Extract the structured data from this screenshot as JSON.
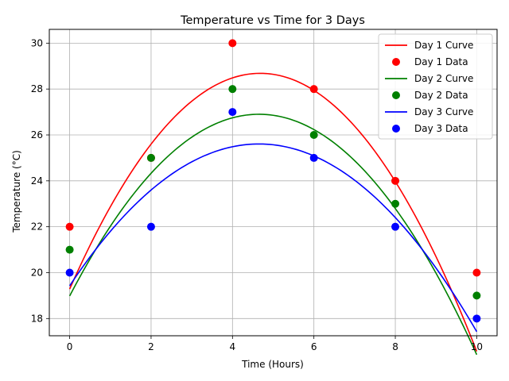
{
  "chart_data": {
    "type": "scatter",
    "title": "Temperature vs Time for 3 Days",
    "xlabel": "Time (Hours)",
    "ylabel": "Temperature (°C)",
    "xlim": [
      -0.5,
      10.5
    ],
    "ylim": [
      17.25,
      30.6
    ],
    "xticks": [
      0,
      2,
      4,
      6,
      8,
      10
    ],
    "yticks": [
      18,
      20,
      22,
      24,
      26,
      28,
      30
    ],
    "grid": true,
    "legend_position": "top-right",
    "series": [
      {
        "day": "Day 1",
        "color": "#ff0000",
        "curve_name": "Day 1 Curve",
        "data_name": "Day 1 Data",
        "x": [
          0,
          2,
          4,
          6,
          8,
          10
        ],
        "y": [
          22,
          25,
          30,
          28,
          24,
          20
        ],
        "curve_coeffs": [
          -0.4286,
          4.0143,
          19.2857
        ]
      },
      {
        "day": "Day 2",
        "color": "#008000",
        "curve_name": "Day 2 Curve",
        "data_name": "Day 2 Data",
        "x": [
          0,
          2,
          4,
          6,
          8,
          10
        ],
        "y": [
          21,
          25,
          28,
          26,
          23,
          19
        ],
        "curve_coeffs": [
          -0.3661,
          3.4054,
          18.9821
        ]
      },
      {
        "day": "Day 3",
        "color": "#0000ff",
        "curve_name": "Day 3 Curve",
        "data_name": "Day 3 Data",
        "x": [
          0,
          2,
          4,
          6,
          8,
          10
        ],
        "y": [
          20,
          22,
          27,
          25,
          22,
          18
        ],
        "curve_coeffs": [
          -0.2857,
          2.6571,
          19.4286
        ]
      }
    ]
  }
}
